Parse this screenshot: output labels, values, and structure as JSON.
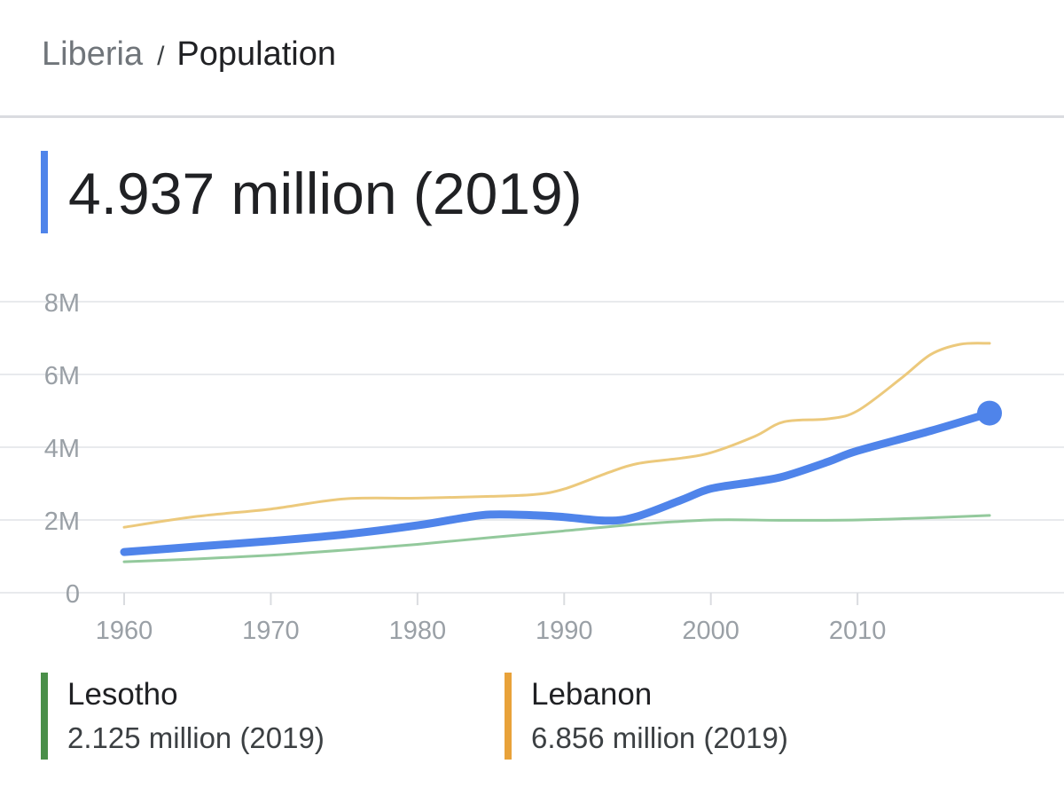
{
  "breadcrumb": {
    "country": "Liberia",
    "separator": "/",
    "metric": "Population"
  },
  "headline": {
    "value": "4.937 million (2019)",
    "color": "#4f84ea"
  },
  "chart_data": {
    "type": "line",
    "title": "",
    "xlabel": "",
    "ylabel": "",
    "x_ticks": [
      "1960",
      "1970",
      "1980",
      "1990",
      "2000",
      "2010"
    ],
    "y_ticks": [
      "0",
      "2M",
      "4M",
      "6M",
      "8M"
    ],
    "y_tick_values": [
      0,
      2000000,
      4000000,
      6000000,
      8000000
    ],
    "xlim": [
      1960,
      2019
    ],
    "ylim": [
      0,
      8000000
    ],
    "grid": true,
    "series": [
      {
        "name": "Lesotho",
        "color": "#93c99c",
        "emphasis": false,
        "points": [
          [
            1960,
            850000
          ],
          [
            1965,
            930000
          ],
          [
            1970,
            1030000
          ],
          [
            1975,
            1170000
          ],
          [
            1980,
            1330000
          ],
          [
            1985,
            1520000
          ],
          [
            1990,
            1700000
          ],
          [
            1995,
            1880000
          ],
          [
            2000,
            2000000
          ],
          [
            2005,
            1990000
          ],
          [
            2010,
            2000000
          ],
          [
            2015,
            2060000
          ],
          [
            2019,
            2125000
          ]
        ]
      },
      {
        "name": "Lebanon",
        "color": "#ecc97c",
        "emphasis": false,
        "points": [
          [
            1960,
            1800000
          ],
          [
            1965,
            2100000
          ],
          [
            1970,
            2300000
          ],
          [
            1975,
            2580000
          ],
          [
            1980,
            2600000
          ],
          [
            1985,
            2650000
          ],
          [
            1988,
            2700000
          ],
          [
            1990,
            2850000
          ],
          [
            1993,
            3300000
          ],
          [
            1995,
            3550000
          ],
          [
            1998,
            3700000
          ],
          [
            2000,
            3850000
          ],
          [
            2003,
            4300000
          ],
          [
            2005,
            4700000
          ],
          [
            2008,
            4780000
          ],
          [
            2010,
            5000000
          ],
          [
            2013,
            5900000
          ],
          [
            2015,
            6550000
          ],
          [
            2017,
            6830000
          ],
          [
            2019,
            6856000
          ]
        ]
      },
      {
        "name": "Liberia",
        "color": "#4f84ea",
        "emphasis": true,
        "points": [
          [
            1960,
            1120000
          ],
          [
            1965,
            1270000
          ],
          [
            1970,
            1420000
          ],
          [
            1975,
            1600000
          ],
          [
            1980,
            1850000
          ],
          [
            1983,
            2050000
          ],
          [
            1985,
            2150000
          ],
          [
            1988,
            2130000
          ],
          [
            1990,
            2080000
          ],
          [
            1993,
            1980000
          ],
          [
            1995,
            2100000
          ],
          [
            1998,
            2550000
          ],
          [
            2000,
            2860000
          ],
          [
            2003,
            3050000
          ],
          [
            2005,
            3200000
          ],
          [
            2008,
            3600000
          ],
          [
            2010,
            3900000
          ],
          [
            2015,
            4450000
          ],
          [
            2019,
            4937000
          ]
        ]
      }
    ]
  },
  "legend": [
    {
      "name": "Lesotho",
      "value": "2.125 million (2019)",
      "color": "#4a8f49"
    },
    {
      "name": "Lebanon",
      "value": "6.856 million (2019)",
      "color": "#e8a23a"
    }
  ]
}
